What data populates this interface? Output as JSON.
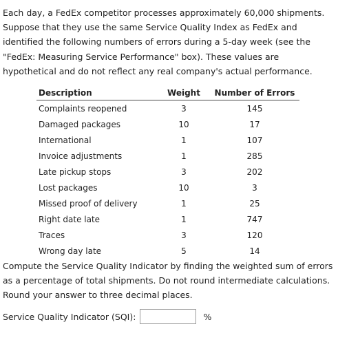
{
  "problem": {
    "intro": "Each day, a FedEx competitor processes approximately 60,000 shipments. Suppose that they use the same Service Quality Index as FedEx and identified the following numbers of errors during a 5-day week (see the \"FedEx: Measuring Service Performance\" box). These values are hypothetical and do not reflect any real company's actual performance.",
    "outro": "Compute the Service Quality Indicator by finding the weighted sum of errors as a percentage of total shipments. Do not round intermediate calculations. Round your answer to three decimal places."
  },
  "table": {
    "headers": [
      "Description",
      "Weight",
      "Number of Errors"
    ],
    "rows": [
      {
        "description": "Complaints reopened",
        "weight": "3",
        "errors": "145"
      },
      {
        "description": "Damaged packages",
        "weight": "10",
        "errors": "17"
      },
      {
        "description": "International",
        "weight": "1",
        "errors": "107"
      },
      {
        "description": "Invoice adjustments",
        "weight": "1",
        "errors": "285"
      },
      {
        "description": "Late pickup stops",
        "weight": "3",
        "errors": "202"
      },
      {
        "description": "Lost packages",
        "weight": "10",
        "errors": "3"
      },
      {
        "description": "Missed proof of delivery",
        "weight": "1",
        "errors": "25"
      },
      {
        "description": "Right date late",
        "weight": "1",
        "errors": "747"
      },
      {
        "description": "Traces",
        "weight": "3",
        "errors": "120"
      },
      {
        "description": "Wrong day late",
        "weight": "5",
        "errors": "14"
      }
    ]
  },
  "answer": {
    "label": "Service Quality Indicator (SQI):",
    "value": "",
    "unit": "%"
  }
}
